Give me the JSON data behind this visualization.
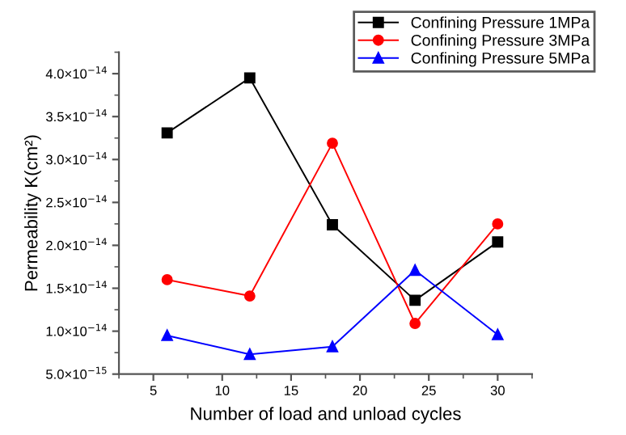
{
  "chart_data": {
    "type": "line",
    "xlabel": "Number of load and unload cycles",
    "ylabel": "Permeability K(cm²)",
    "x": [
      6,
      12,
      18,
      24,
      30
    ],
    "series": [
      {
        "name": "Confining Pressure 1MPa",
        "color": "#000000",
        "marker": "square",
        "values": [
          3.31e-14,
          3.95e-14,
          2.24e-14,
          1.36e-14,
          2.04e-14
        ]
      },
      {
        "name": "Confining Pressure 3MPa",
        "color": "#ff0000",
        "marker": "circle",
        "values": [
          1.6e-14,
          1.41e-14,
          3.19e-14,
          1.09e-14,
          2.25e-14
        ]
      },
      {
        "name": "Confining Pressure 5MPa",
        "color": "#0000ff",
        "marker": "triangle",
        "values": [
          9.5e-15,
          7.3e-15,
          8.2e-15,
          1.71e-14,
          9.6e-15
        ]
      }
    ],
    "xlim": [
      2.5,
      32.5
    ],
    "xticks": [
      5,
      10,
      15,
      20,
      25,
      30
    ],
    "ylim": [
      5e-15,
      4.25e-14
    ],
    "yticks": [
      {
        "value": 5e-15,
        "label": "5.0×10$^{−15}$"
      },
      {
        "value": 1e-14,
        "label": "1.0×10$^{−14}$"
      },
      {
        "value": 1.5e-14,
        "label": "1.5×10$^{−14}$"
      },
      {
        "value": 2e-14,
        "label": "2.0×10$^{−14}$"
      },
      {
        "value": 2.5e-14,
        "label": "2.5×10$^{−14}$"
      },
      {
        "value": 3e-14,
        "label": "3.0×10$^{−14}$"
      },
      {
        "value": 3.5e-14,
        "label": "3.5×10$^{−14}$"
      },
      {
        "value": 4e-14,
        "label": "4.0×10$^{−14}$"
      }
    ],
    "legend": "top right",
    "grid": false
  }
}
